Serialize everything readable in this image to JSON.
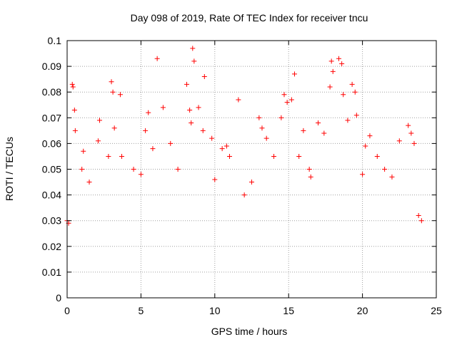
{
  "chart_data": {
    "type": "scatter",
    "title": "Day 098 of 2019, Rate Of TEC Index for receiver tncu",
    "xlabel": "GPS time / hours",
    "ylabel": "ROTI / TECUs",
    "xlim": [
      0,
      25
    ],
    "ylim": [
      0,
      0.1
    ],
    "xticks": [
      0,
      5,
      10,
      15,
      20,
      25
    ],
    "yticks": [
      0,
      0.01,
      0.02,
      0.03,
      0.04,
      0.05,
      0.06,
      0.07,
      0.08,
      0.09,
      0.1
    ],
    "grid": true,
    "marker": "+",
    "marker_color": "#ff0000",
    "series": [
      {
        "name": "ROTI",
        "x": [
          0.0,
          0.1,
          0.35,
          0.4,
          0.5,
          0.55,
          1.0,
          1.1,
          1.5,
          2.1,
          2.2,
          2.8,
          3.0,
          3.1,
          3.2,
          3.6,
          3.7,
          4.5,
          5.0,
          5.3,
          5.5,
          5.8,
          6.1,
          6.5,
          7.0,
          7.5,
          8.1,
          8.3,
          8.4,
          8.5,
          8.6,
          8.9,
          9.2,
          9.3,
          9.8,
          10.0,
          10.5,
          10.8,
          11.0,
          11.6,
          12.0,
          12.5,
          13.0,
          13.2,
          13.5,
          14.0,
          14.5,
          14.7,
          14.9,
          15.2,
          15.4,
          15.7,
          16.0,
          16.4,
          16.5,
          17.0,
          17.4,
          17.8,
          17.9,
          18.0,
          18.4,
          18.6,
          18.7,
          19.0,
          19.3,
          19.5,
          19.6,
          20.0,
          20.2,
          20.5,
          21.0,
          21.5,
          22.0,
          22.5,
          23.1,
          23.3,
          23.5,
          23.8,
          24.0
        ],
        "y": [
          0.03,
          0.029,
          0.083,
          0.082,
          0.073,
          0.065,
          0.05,
          0.057,
          0.045,
          0.061,
          0.069,
          0.055,
          0.084,
          0.08,
          0.066,
          0.079,
          0.055,
          0.05,
          0.048,
          0.065,
          0.072,
          0.058,
          0.093,
          0.074,
          0.06,
          0.05,
          0.083,
          0.073,
          0.068,
          0.097,
          0.092,
          0.074,
          0.065,
          0.086,
          0.062,
          0.046,
          0.058,
          0.059,
          0.055,
          0.077,
          0.04,
          0.045,
          0.07,
          0.066,
          0.062,
          0.055,
          0.07,
          0.079,
          0.076,
          0.077,
          0.087,
          0.055,
          0.065,
          0.05,
          0.047,
          0.068,
          0.064,
          0.082,
          0.092,
          0.088,
          0.093,
          0.091,
          0.079,
          0.069,
          0.083,
          0.08,
          0.071,
          0.048,
          0.059,
          0.063,
          0.055,
          0.05,
          0.047,
          0.061,
          0.067,
          0.064,
          0.06,
          0.032,
          0.03
        ]
      }
    ]
  }
}
